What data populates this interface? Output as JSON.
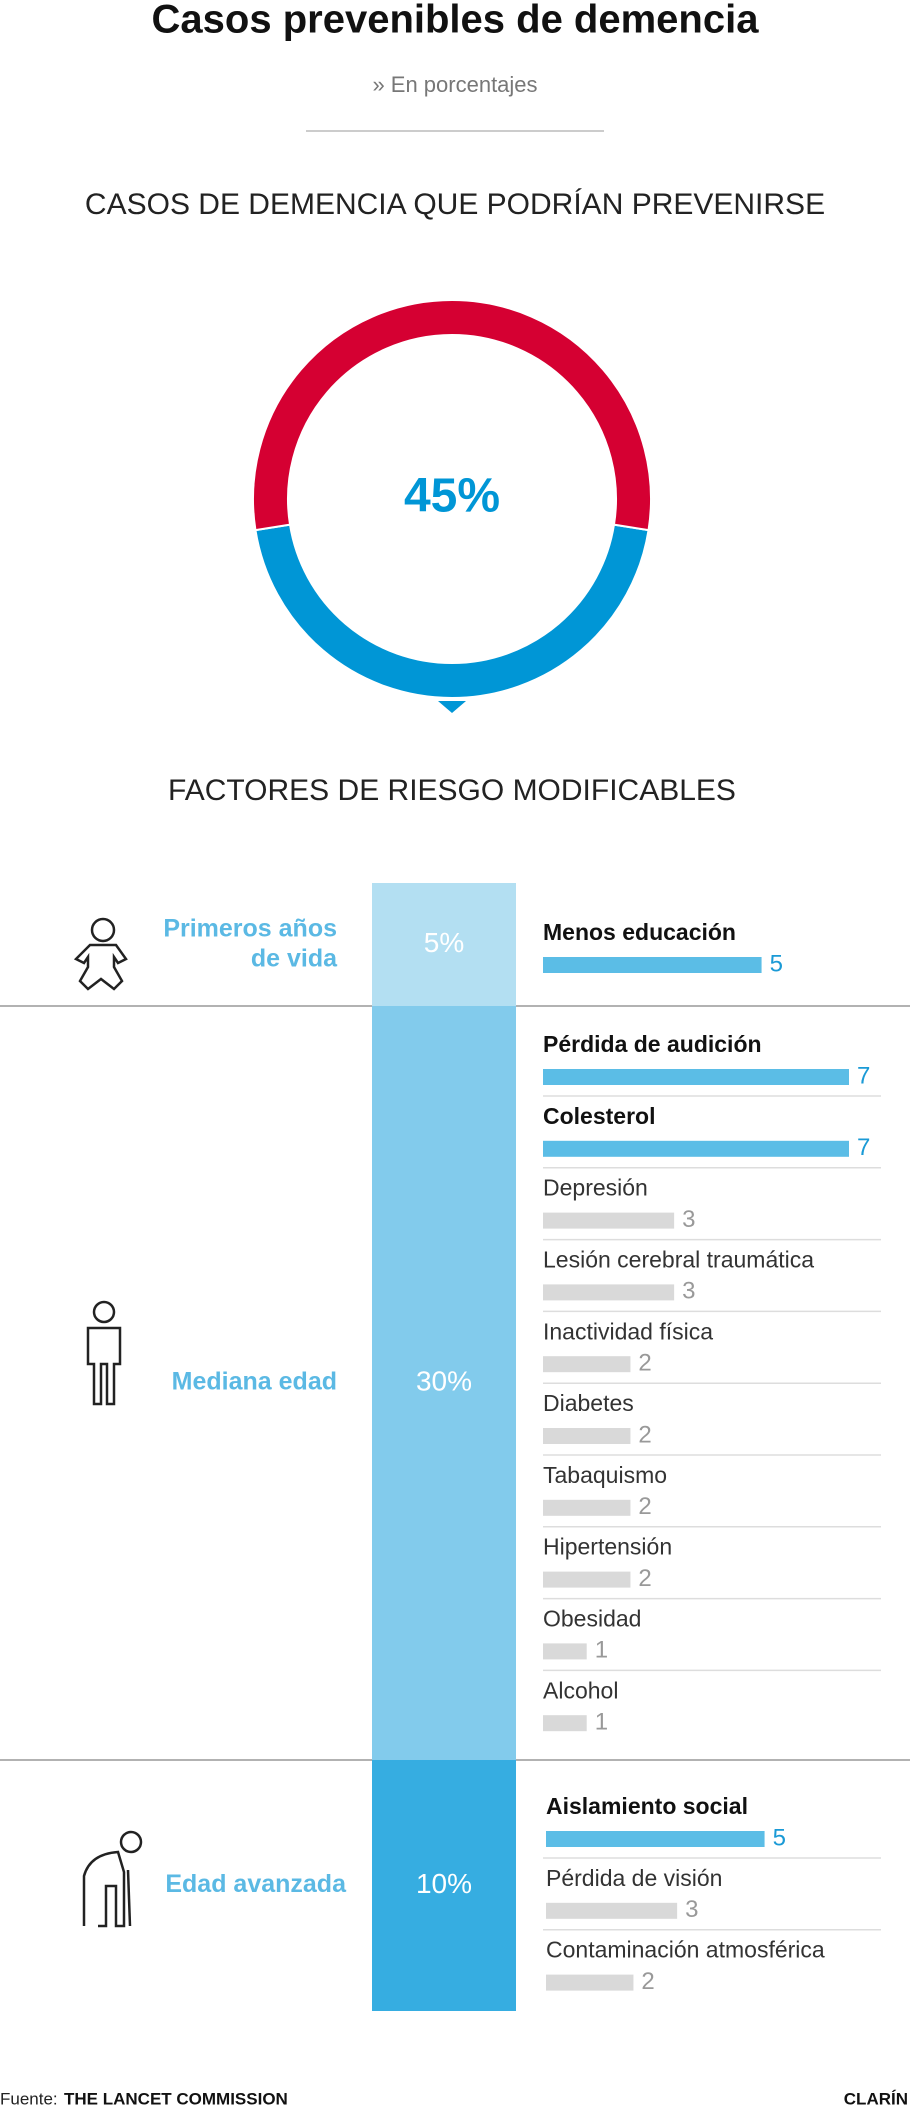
{
  "title": "Casos prevenibles de demencia",
  "subtitle": "» En porcentajes",
  "source_label": "Fuente:",
  "source": "THE LANCET COMMISSION",
  "brand": "CLARÍN",
  "chart_data": [
    {
      "type": "pie",
      "title": "CASOS DE DEMENCIA QUE PODRÍAN PREVENIRSE",
      "values": [
        45,
        55
      ],
      "value_labels": [
        "45%",
        null
      ],
      "colors": [
        "#0096d6",
        "#d50032"
      ]
    },
    {
      "type": "bar",
      "title": "FACTORES DE RIESGO MODIFICABLES",
      "xlim": [
        0,
        7
      ],
      "highlight_color": "#5bbde6",
      "muted_color": "#d9d9d9",
      "groups": [
        {
          "name": "Primeros años de vida",
          "total": 5,
          "total_label": "5%",
          "color": "#b3dff2",
          "categories": [
            "Menos educación"
          ],
          "values": [
            5
          ],
          "highlight": [
            true
          ]
        },
        {
          "name": "Mediana edad",
          "total": 30,
          "total_label": "30%",
          "color": "#82cbec",
          "categories": [
            "Pérdida de audición",
            "Colesterol",
            "Depresión",
            "Lesión cerebral traumática",
            "Inactividad física",
            "Diabetes",
            "Tabaquismo",
            "Hipertensión",
            "Obesidad",
            "Alcohol"
          ],
          "values": [
            7,
            7,
            3,
            3,
            2,
            2,
            2,
            2,
            1,
            1
          ],
          "highlight": [
            true,
            true,
            false,
            false,
            false,
            false,
            false,
            false,
            false,
            false
          ]
        },
        {
          "name": "Edad avanzada",
          "total": 10,
          "total_label": "10%",
          "color": "#36ade1",
          "categories": [
            "Aislamiento social",
            "Pérdida de visión",
            "Contaminación atmosférica"
          ],
          "values": [
            5,
            3,
            2
          ],
          "highlight": [
            true,
            false,
            false
          ]
        }
      ]
    }
  ]
}
